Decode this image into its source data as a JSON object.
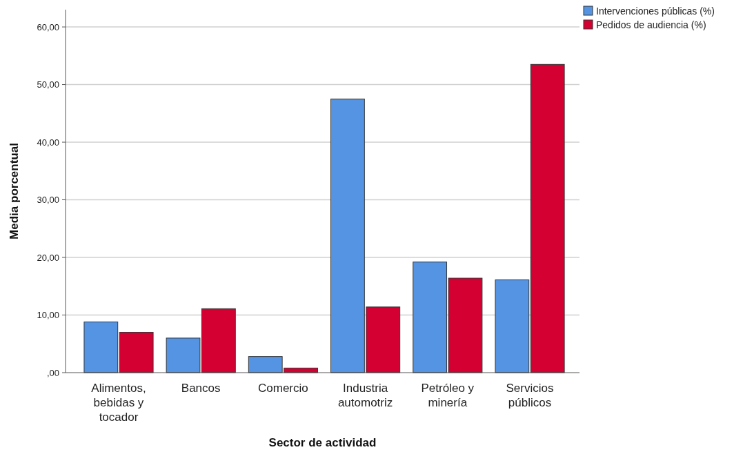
{
  "chart_data": {
    "type": "bar",
    "xlabel": "Sector de actividad",
    "ylabel": "Media porcentual",
    "categories": [
      "Alimentos, bebidas y tocador",
      "Bancos",
      "Comercio",
      "Industria automotriz",
      "Petróleo y minería",
      "Servicios públicos"
    ],
    "series": [
      {
        "name": "Intervenciones públicas (%)",
        "color": "#5594e2",
        "values": [
          8.8,
          6.0,
          2.8,
          47.5,
          19.2,
          16.1
        ]
      },
      {
        "name": "Pedidos de audiencia (%)",
        "color": "#d50032",
        "values": [
          7.0,
          11.1,
          0.8,
          11.4,
          16.4,
          53.5
        ]
      }
    ],
    "ylim": [
      0,
      63
    ],
    "yticks": [
      {
        "value": 0,
        "label": ",00"
      },
      {
        "value": 10,
        "label": "10,00"
      },
      {
        "value": 20,
        "label": "20,00"
      },
      {
        "value": 30,
        "label": "30,00"
      },
      {
        "value": 40,
        "label": "40,00"
      },
      {
        "value": 50,
        "label": "50,00"
      },
      {
        "value": 60,
        "label": "60,00"
      }
    ],
    "grid": "y",
    "legend": "top right"
  }
}
